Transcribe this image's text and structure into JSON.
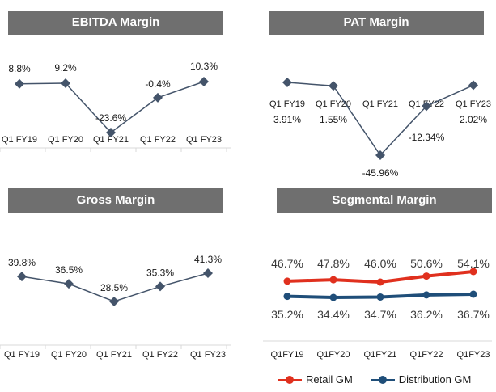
{
  "chart_data": [
    {
      "type": "line",
      "title": "EBITDA Margin",
      "categories": [
        "Q1 FY19",
        "Q1 FY20",
        "Q1 FY21",
        "Q1 FY22",
        "Q1 FY23"
      ],
      "series": [
        {
          "values": [
            8.8,
            9.2,
            -23.6,
            -0.4,
            10.3
          ],
          "labels": [
            "8.8%",
            "9.2%",
            "-23.6%",
            "-0.4%",
            "10.3%"
          ],
          "color": "#44546a"
        }
      ]
    },
    {
      "type": "line",
      "title": "PAT Margin",
      "categories": [
        "Q1 FY19",
        "Q1 FY20",
        "Q1 FY21",
        "Q1 FY22",
        "Q1 FY23"
      ],
      "series": [
        {
          "values": [
            3.91,
            1.55,
            -45.96,
            -12.34,
            2.02
          ],
          "labels": [
            "3.91%",
            "1.55%",
            "-45.96%",
            "-12.34%",
            "2.02%"
          ],
          "color": "#44546a"
        }
      ]
    },
    {
      "type": "line",
      "title": "Gross Margin",
      "categories": [
        "Q1 FY19",
        "Q1 FY20",
        "Q1 FY21",
        "Q1 FY22",
        "Q1 FY23"
      ],
      "series": [
        {
          "values": [
            39.8,
            36.5,
            28.5,
            35.3,
            41.3
          ],
          "labels": [
            "39.8%",
            "36.5%",
            "28.5%",
            "35.3%",
            "41.3%"
          ],
          "color": "#44546a"
        }
      ]
    },
    {
      "type": "line",
      "title": "Segmental Margin",
      "categories": [
        "Q1FY19",
        "Q1FY20",
        "Q1FY21",
        "Q1FY22",
        "Q1FY23"
      ],
      "series": [
        {
          "name": "Retail GM",
          "values": [
            46.7,
            47.8,
            46.0,
            50.6,
            54.1
          ],
          "labels": [
            "46.7%",
            "47.8%",
            "46.0%",
            "50.6%",
            "54.1%"
          ],
          "color": "#e0301e"
        },
        {
          "name": "Distribution GM",
          "values": [
            35.2,
            34.4,
            34.7,
            36.2,
            36.7
          ],
          "labels": [
            "35.2%",
            "34.4%",
            "34.7%",
            "36.2%",
            "36.7%"
          ],
          "color": "#1f4e79"
        }
      ],
      "legend": "bottom"
    }
  ]
}
